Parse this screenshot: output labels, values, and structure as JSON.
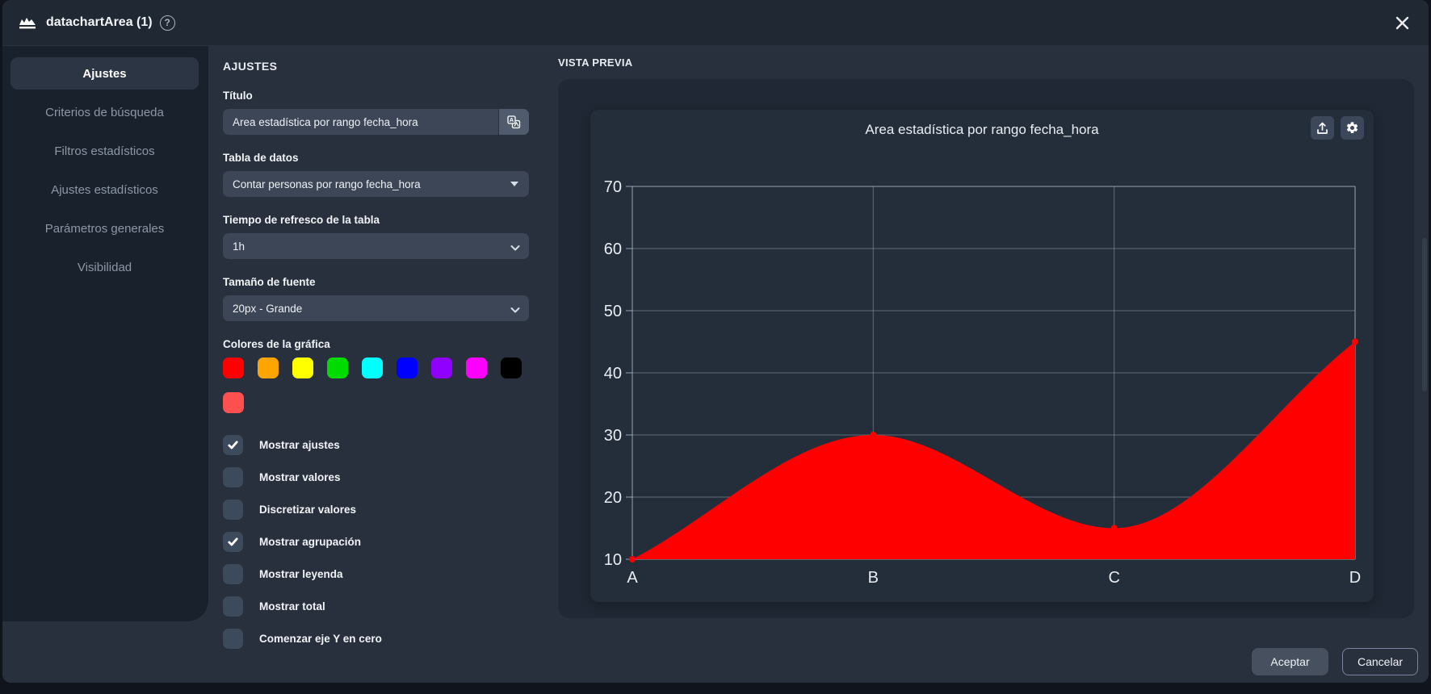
{
  "header": {
    "title": "datachartArea (1)",
    "icons": {
      "logo": "area-chart-icon",
      "help": "help-icon",
      "close": "close-icon"
    }
  },
  "sidebar": {
    "items": [
      {
        "label": "Ajustes",
        "active": true
      },
      {
        "label": "Criterios de búsqueda",
        "active": false
      },
      {
        "label": "Filtros estadísticos",
        "active": false
      },
      {
        "label": "Ajustes estadísticos",
        "active": false
      },
      {
        "label": "Parámetros generales",
        "active": false
      },
      {
        "label": "Visibilidad",
        "active": false
      }
    ]
  },
  "settings": {
    "heading": "AJUSTES",
    "title_field": {
      "label": "Título",
      "value": "Area estadística por rango fecha_hora",
      "icon": "translate-icon"
    },
    "data_table_field": {
      "label": "Tabla de datos",
      "value": "Contar personas por rango fecha_hora"
    },
    "refresh_field": {
      "label": "Tiempo de refresco de la tabla",
      "value": "1h"
    },
    "font_size_field": {
      "label": "Tamaño de fuente",
      "value": "20px - Grande"
    },
    "colors_field": {
      "label": "Colores de la gráfica",
      "swatches": [
        "#ff0000",
        "#ffa500",
        "#ffff00",
        "#00dc00",
        "#00ffff",
        "#0000ff",
        "#8f00ff",
        "#ff00ff",
        "#000000",
        "#ff5050"
      ]
    },
    "checkboxes": [
      {
        "label": "Mostrar ajustes",
        "checked": true
      },
      {
        "label": "Mostrar valores",
        "checked": false
      },
      {
        "label": "Discretizar valores",
        "checked": false
      },
      {
        "label": "Mostrar agrupación",
        "checked": true
      },
      {
        "label": "Mostrar leyenda",
        "checked": false
      },
      {
        "label": "Mostrar total",
        "checked": false
      },
      {
        "label": "Comenzar eje Y en cero",
        "checked": false
      }
    ]
  },
  "preview": {
    "heading": "VISTA PREVIA",
    "card_icons": [
      "export-icon",
      "gear-icon"
    ]
  },
  "footer": {
    "accept_label": "Aceptar",
    "cancel_label": "Cancelar"
  },
  "chart_data": {
    "type": "area",
    "title": "Area estadística por rango fecha_hora",
    "categories": [
      "A",
      "B",
      "C",
      "D"
    ],
    "values": [
      10,
      30,
      15,
      45
    ],
    "ylim": [
      10,
      70
    ],
    "ytick_step": 10,
    "xlabel": "",
    "ylabel": "",
    "fill_color": "#ff0000",
    "grid": true,
    "legend": false,
    "curve": "monotone"
  }
}
